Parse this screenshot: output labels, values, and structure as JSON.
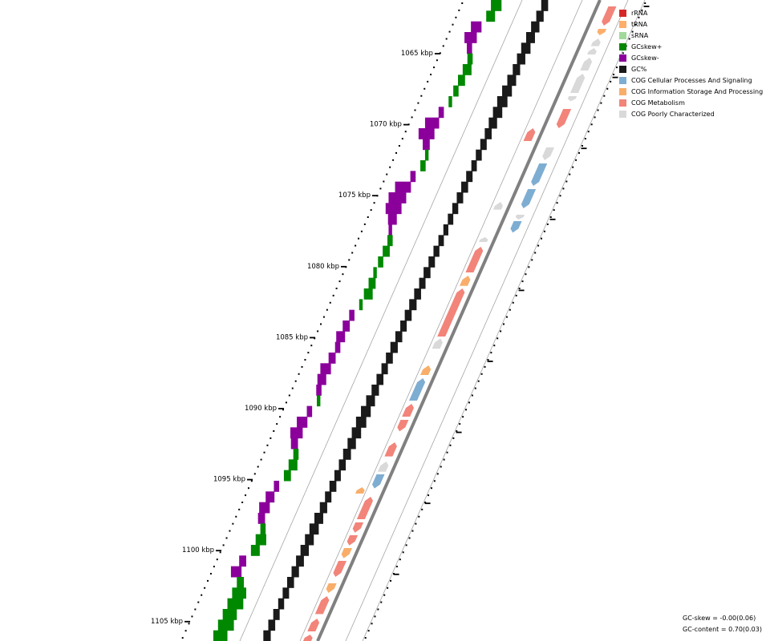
{
  "legend": [
    {
      "label": "rRNA",
      "color": "#d62728"
    },
    {
      "label": "tRNA",
      "color": "#fdae6b"
    },
    {
      "label": "sRNA",
      "color": "#a1d99b"
    },
    {
      "label": "GCskew+",
      "color": "#008800"
    },
    {
      "label": "GCskew-",
      "color": "#8b009b"
    },
    {
      "label": "GC%",
      "color": "#1a1a1a"
    },
    {
      "label": "COG Cellular Processes And Signaling",
      "color": "#7eadd2"
    },
    {
      "label": "COG Information Storage And Processing",
      "color": "#f8ae6a"
    },
    {
      "label": "COG Metabolism",
      "color": "#f2847a"
    },
    {
      "label": "COG Poorly Characterized",
      "color": "#d9d9d9"
    }
  ],
  "axis": {
    "ticks": [
      "1065 kbp",
      "1070 kbp",
      "1075 kbp",
      "1080 kbp",
      "1085 kbp",
      "1090 kbp",
      "1095 kbp",
      "1100 kbp",
      "1105 kbp"
    ]
  },
  "stats": {
    "gc_skew": "GC-skew = -0.00(0.06)",
    "gc_content": "GC-content = 0.70(0.03)"
  },
  "features": {
    "outer": [
      {
        "pos": 0.01,
        "len": 0.03,
        "cat": "COG Metabolism",
        "dir": "down"
      },
      {
        "pos": 0.045,
        "len": 0.01,
        "cat": "tRNA",
        "dir": "down"
      },
      {
        "pos": 0.06,
        "len": 0.012,
        "cat": "COG Poorly Characterized",
        "dir": "up"
      },
      {
        "pos": 0.075,
        "len": 0.01,
        "cat": "COG Poorly Characterized",
        "dir": "up"
      },
      {
        "pos": 0.09,
        "len": 0.02,
        "cat": "COG Poorly Characterized",
        "dir": "up"
      },
      {
        "pos": 0.115,
        "len": 0.03,
        "cat": "COG Poorly Characterized",
        "dir": "up"
      },
      {
        "pos": 0.15,
        "len": 0.008,
        "cat": "COG Poorly Characterized",
        "dir": "down"
      },
      {
        "pos": 0.17,
        "len": 0.03,
        "cat": "COG Metabolism",
        "dir": "down"
      },
      {
        "pos": 0.23,
        "len": 0.02,
        "cat": "COG Poorly Characterized",
        "dir": "down"
      },
      {
        "pos": 0.255,
        "len": 0.035,
        "cat": "COG Cellular Processes And Signaling",
        "dir": "down"
      },
      {
        "pos": 0.295,
        "len": 0.03,
        "cat": "COG Cellular Processes And Signaling",
        "dir": "down"
      },
      {
        "pos": 0.335,
        "len": 0.006,
        "cat": "COG Poorly Characterized",
        "dir": "down"
      },
      {
        "pos": 0.345,
        "len": 0.018,
        "cat": "COG Cellular Processes And Signaling",
        "dir": "down"
      }
    ],
    "inner": [
      {
        "pos": 0.2,
        "len": 0.02,
        "cat": "COG Metabolism",
        "dir": "up"
      },
      {
        "pos": 0.315,
        "len": 0.012,
        "cat": "COG Poorly Characterized",
        "dir": "up"
      },
      {
        "pos": 0.37,
        "len": 0.006,
        "cat": "COG Poorly Characterized",
        "dir": "up"
      },
      {
        "pos": 0.385,
        "len": 0.04,
        "cat": "COG Metabolism",
        "dir": "up"
      },
      {
        "pos": 0.43,
        "len": 0.016,
        "cat": "COG Information Storage And Processing",
        "dir": "up"
      },
      {
        "pos": 0.45,
        "len": 0.075,
        "cat": "COG Metabolism",
        "dir": "up"
      },
      {
        "pos": 0.528,
        "len": 0.016,
        "cat": "COG Poorly Characterized",
        "dir": "up"
      },
      {
        "pos": 0.57,
        "len": 0.015,
        "cat": "COG Information Storage And Processing",
        "dir": "up"
      },
      {
        "pos": 0.59,
        "len": 0.035,
        "cat": "COG Cellular Processes And Signaling",
        "dir": "up"
      },
      {
        "pos": 0.63,
        "len": 0.02,
        "cat": "COG Metabolism",
        "dir": "up"
      },
      {
        "pos": 0.655,
        "len": 0.018,
        "cat": "COG Metabolism",
        "dir": "down"
      },
      {
        "pos": 0.69,
        "len": 0.022,
        "cat": "COG Metabolism",
        "dir": "up"
      },
      {
        "pos": 0.72,
        "len": 0.016,
        "cat": "COG Poorly Characterized",
        "dir": "up"
      },
      {
        "pos": 0.74,
        "len": 0.022,
        "cat": "COG Cellular Processes And Signaling",
        "dir": "down"
      },
      {
        "pos": 0.775,
        "len": 0.035,
        "cat": "COG Metabolism",
        "dir": "up"
      },
      {
        "pos": 0.815,
        "len": 0.016,
        "cat": "COG Metabolism",
        "dir": "down"
      },
      {
        "pos": 0.835,
        "len": 0.016,
        "cat": "COG Metabolism",
        "dir": "down"
      },
      {
        "pos": 0.855,
        "len": 0.016,
        "cat": "COG Information Storage And Processing",
        "dir": "down"
      },
      {
        "pos": 0.875,
        "len": 0.025,
        "cat": "COG Metabolism",
        "dir": "down"
      },
      {
        "pos": 0.91,
        "len": 0.015,
        "cat": "COG Information Storage And Processing",
        "dir": "down"
      },
      {
        "pos": 0.93,
        "len": 0.028,
        "cat": "COG Metabolism",
        "dir": "up"
      },
      {
        "pos": 0.965,
        "len": 0.02,
        "cat": "COG Metabolism",
        "dir": "up"
      },
      {
        "pos": 0.99,
        "len": 0.01,
        "cat": "COG Metabolism",
        "dir": "up"
      }
    ],
    "isolated": [
      {
        "pos": 0.76,
        "len": 0.01,
        "cat": "COG Information Storage And Processing",
        "dir": "up"
      }
    ]
  },
  "gc_skew_profile": [
    0.6,
    0.5,
    -0.6,
    -0.7,
    -0.3,
    0.3,
    0.5,
    0.4,
    0.3,
    0.2,
    -0.3,
    -0.8,
    -0.9,
    -0.4,
    0.2,
    0.3,
    -0.3,
    -0.9,
    -1.0,
    -0.9,
    -0.5,
    -0.2,
    0.3,
    0.4,
    0.3,
    0.2,
    0.4,
    0.5,
    0.2,
    -0.3,
    -0.4,
    -0.5,
    -0.3,
    -0.4,
    -0.6,
    -0.5,
    -0.3,
    0.2,
    -0.3,
    -0.6,
    -0.7,
    -0.4,
    0.3,
    0.5,
    0.4,
    -0.3,
    -0.5,
    -0.6,
    -0.4,
    0.3,
    0.6,
    0.5,
    -0.4,
    -0.6,
    0.4,
    0.8,
    0.9,
    0.8,
    0.9,
    0.8
  ],
  "gc_content_profile": [
    0.55,
    0.6,
    0.7,
    0.75,
    0.8,
    0.7,
    0.6,
    0.75,
    0.85,
    0.9,
    0.8,
    0.7,
    0.55,
    0.5,
    0.45,
    0.4,
    0.5,
    0.55,
    0.5,
    0.45,
    0.4,
    0.35,
    0.4,
    0.45,
    0.5,
    0.55,
    0.5,
    0.55,
    0.6,
    0.55,
    0.5,
    0.55,
    0.6,
    0.55,
    0.5,
    0.55,
    0.6,
    0.75,
    0.85,
    0.9,
    0.8,
    0.7,
    0.65,
    0.55,
    0.5,
    0.55,
    0.5,
    0.6,
    0.75,
    0.8,
    0.75,
    0.7,
    0.65,
    0.6,
    0.55,
    0.5,
    0.45,
    0.5,
    0.55,
    0.6
  ]
}
